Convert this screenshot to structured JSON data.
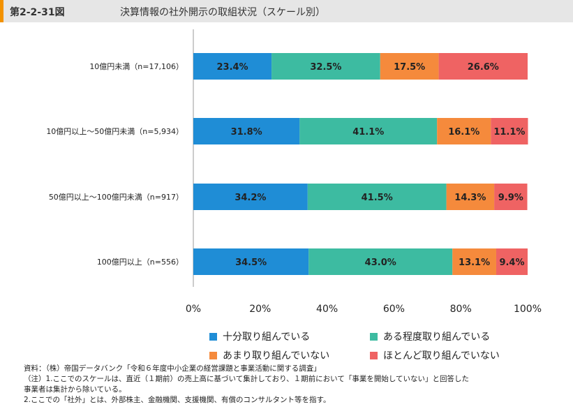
{
  "figure": {
    "number": "第2-2-31図",
    "title": "決算情報の社外開示の取組状況（スケール別）"
  },
  "colors": {
    "header_bg": "#e6e6e6",
    "accent": "#f39200",
    "series": [
      "#1f8dd6",
      "#3dbba1",
      "#f58a3c",
      "#ef6363"
    ]
  },
  "chart_data": {
    "type": "bar",
    "orientation": "horizontal",
    "stacked": true,
    "categories": [
      "10億円未満（n=17,106）",
      "10億円以上～50億円未満（n=5,934）",
      "50億円以上～100億円未満（n=917）",
      "100億円以上（n=556）"
    ],
    "series": [
      {
        "name": "十分取り組んでいる",
        "color": "#1f8dd6",
        "values": [
          23.4,
          31.8,
          34.2,
          34.5
        ]
      },
      {
        "name": "ある程度取り組んでいる",
        "color": "#3dbba1",
        "values": [
          32.5,
          41.1,
          41.5,
          43.0
        ]
      },
      {
        "name": "あまり取り組んでいない",
        "color": "#f58a3c",
        "values": [
          17.5,
          16.1,
          14.3,
          13.1
        ]
      },
      {
        "name": "ほとんど取り組んでいない",
        "color": "#ef6363",
        "values": [
          26.6,
          11.1,
          9.9,
          9.4
        ]
      }
    ],
    "xlim": [
      0,
      100
    ],
    "xticks": [
      "0%",
      "20%",
      "40%",
      "60%",
      "80%",
      "100%"
    ],
    "grid": false,
    "legend_position": "bottom"
  },
  "legend": {
    "items": [
      "十分取り組んでいる",
      "ある程度取り組んでいる",
      "あまり取り組んでいない",
      "ほとんど取り組んでいない"
    ]
  },
  "notes": [
    "資料：（株）帝国データバンク「令和６年度中小企業の経営課題と事業活動に関する調査」",
    "（注）1.ここでのスケールは、直近（１期前）の売上高に基づいて集計しており、１期前において「事業を開始していない」と回答した",
    "事業者は集計から除いている。",
    "2.ここでの「社外」とは、外部株主、金融機関、支援機関、有償のコンサルタント等を指す。"
  ]
}
